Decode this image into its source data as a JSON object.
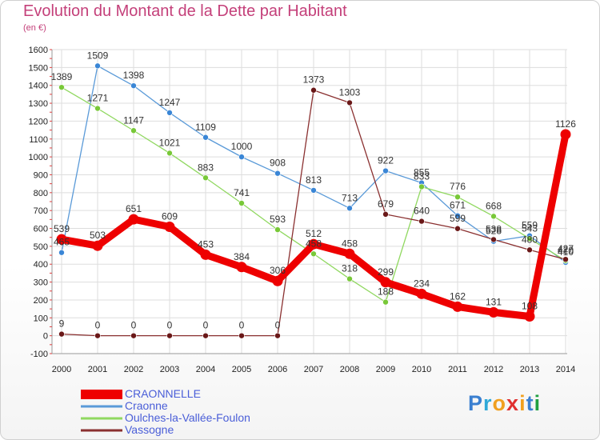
{
  "header": {
    "title": "Evolution du Montant de la Dette par Habitant",
    "unit": "(en €)"
  },
  "logo": {
    "letters": [
      "P",
      "r",
      "o",
      "x",
      "i",
      "t",
      "i"
    ],
    "colors": [
      "#3a7fd0",
      "#2fa8d8",
      "#f0a020",
      "#e03030",
      "#f0a020",
      "#3a7fd0",
      "#20a040"
    ]
  },
  "chart_data": {
    "type": "line",
    "x": [
      "2000",
      "2001",
      "2002",
      "2003",
      "2004",
      "2005",
      "2006",
      "2007",
      "2008",
      "2009",
      "2010",
      "2011",
      "2012",
      "2013",
      "2014"
    ],
    "ylim": [
      -100,
      1600
    ],
    "yticks": [
      -100,
      0,
      100,
      200,
      300,
      400,
      500,
      600,
      700,
      800,
      900,
      1000,
      1100,
      1200,
      1300,
      1400,
      1500,
      1600
    ],
    "grid": true,
    "legend_position": "bottom-left",
    "series": [
      {
        "name": "Craonne",
        "color": "#5a9ad8",
        "marker": "#3a86d6",
        "values": [
          465,
          1509,
          1398,
          1247,
          1109,
          1000,
          908,
          813,
          713,
          922,
          855,
          671,
          528,
          559,
          410
        ],
        "labels": [
          "465",
          "1509",
          "1398",
          "1247",
          "1109",
          "1000",
          "908",
          "813",
          "713",
          "922",
          "855",
          "671",
          "528",
          "559",
          "410"
        ]
      },
      {
        "name": "Oulches-la-Vallée-Foulon",
        "color": "#90d860",
        "marker": "#78c838",
        "values": [
          1389,
          1271,
          1147,
          1021,
          883,
          741,
          593,
          458,
          318,
          188,
          833,
          776,
          668,
          543,
          420
        ],
        "labels": [
          "1389",
          "1271",
          "1147",
          "1021",
          "883",
          "741",
          "593",
          "458",
          "318",
          "188",
          "833",
          "776",
          "668",
          "543",
          "420"
        ]
      },
      {
        "name": "Vassogne",
        "color": "#8a3030",
        "marker": "#6a1818",
        "values": [
          9,
          0,
          0,
          0,
          0,
          0,
          0,
          1373,
          1303,
          679,
          640,
          599,
          538,
          480,
          427
        ],
        "labels": [
          "9",
          "0",
          "0",
          "0",
          "0",
          "0",
          "0",
          "1373",
          "1303",
          "679",
          "640",
          "599",
          "538",
          "480",
          "427"
        ]
      },
      {
        "name": "CRAONNELLE",
        "color": "#ee0000",
        "marker": "#ee0000",
        "values": [
          539,
          503,
          651,
          609,
          453,
          384,
          306,
          512,
          458,
          299,
          234,
          162,
          131,
          108,
          1126
        ],
        "labels": [
          "539",
          "503",
          "651",
          "609",
          "453",
          "384",
          "306",
          "512",
          "458",
          "299",
          "234",
          "162",
          "131",
          "108",
          "1126"
        ]
      }
    ]
  },
  "legend": {
    "items": [
      {
        "label": "CRAONNELLE",
        "color": "#ee0000"
      },
      {
        "label": "Craonne",
        "color": "#5a9ad8"
      },
      {
        "label": "Oulches-la-Vallée-Foulon",
        "color": "#90d860"
      },
      {
        "label": "Vassogne",
        "color": "#8a3030"
      }
    ]
  }
}
